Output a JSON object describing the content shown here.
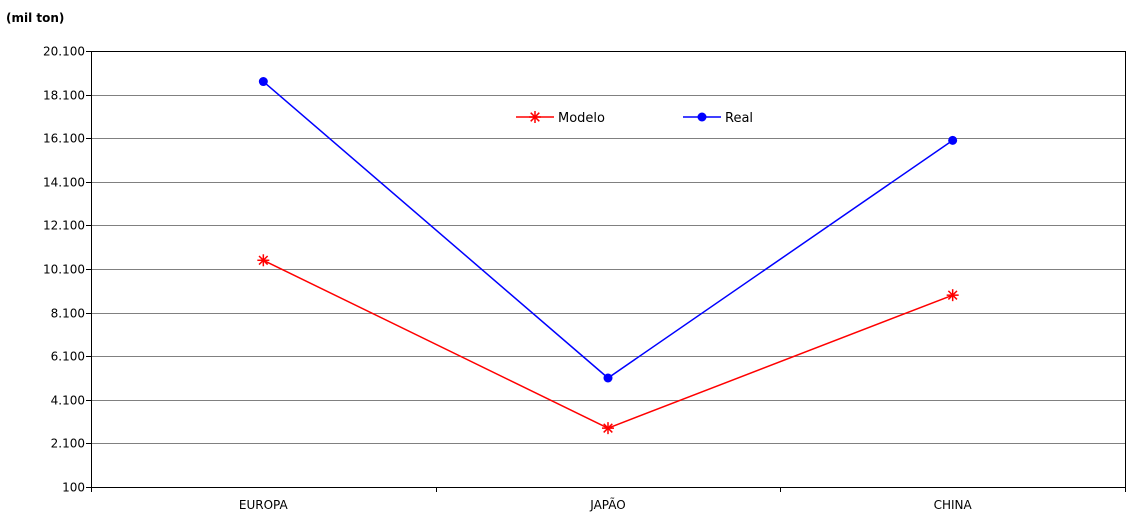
{
  "chart_data": {
    "type": "line",
    "title": "",
    "unit_label": "(mil ton)",
    "xlabel": "",
    "ylabel": "",
    "categories": [
      "EUROPA",
      "JAPÃO",
      "CHINA"
    ],
    "ylim": [
      100,
      20100
    ],
    "yticks": [
      100,
      2100,
      4100,
      6100,
      8100,
      10100,
      12100,
      14100,
      16100,
      18100,
      20100
    ],
    "ytick_labels": [
      "100",
      "2.100",
      "4.100",
      "6.100",
      "8.100",
      "10.100",
      "12.100",
      "14.100",
      "16.100",
      "18.100",
      "20.100"
    ],
    "grid": true,
    "legend_position": "top-center",
    "series": [
      {
        "name": "Modelo",
        "values": [
          10500,
          2800,
          8900
        ],
        "color": "#ff0000",
        "marker": "asterisk"
      },
      {
        "name": "Real",
        "values": [
          18700,
          5100,
          16000
        ],
        "color": "#0000ff",
        "marker": "circle"
      }
    ]
  }
}
